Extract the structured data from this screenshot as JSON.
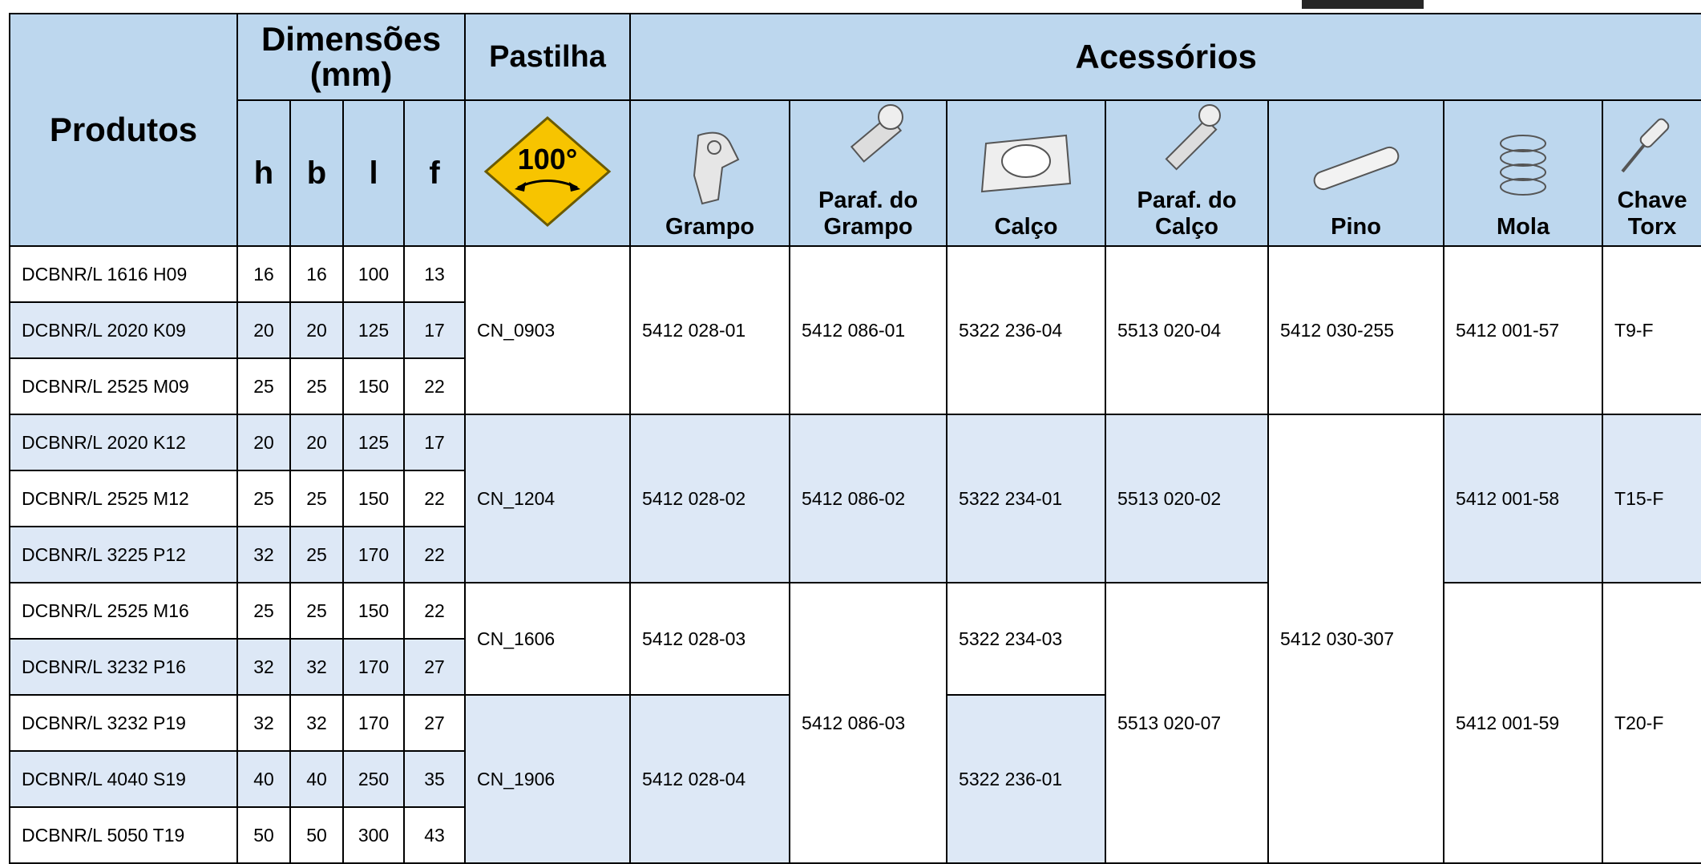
{
  "header": {
    "products": "Produtos",
    "dimensions": "Dimensões (mm)",
    "dimension_columns": [
      "h",
      "b",
      "l",
      "f"
    ],
    "insert": "Pastilha",
    "insert_angle": "100°",
    "accessories": "Acessórios"
  },
  "table": {
    "rows": [
      [
        "DCBNR/L 1616 H09",
        16,
        16,
        100,
        13
      ],
      [
        "DCBNR/L 2020 K09",
        20,
        20,
        125,
        17
      ],
      [
        "DCBNR/L 2525 M09",
        25,
        25,
        150,
        22
      ],
      [
        "DCBNR/L 2020 K12",
        20,
        20,
        125,
        17
      ],
      [
        "DCBNR/L 2525 M12",
        25,
        25,
        150,
        22
      ],
      [
        "DCBNR/L 3225 P12",
        32,
        25,
        170,
        22
      ],
      [
        "DCBNR/L 2525 M16",
        25,
        25,
        150,
        22
      ],
      [
        "DCBNR/L 3232 P16",
        32,
        32,
        170,
        27
      ],
      [
        "DCBNR/L 3232 P19",
        32,
        32,
        170,
        27
      ],
      [
        "DCBNR/L 4040 S19",
        40,
        40,
        250,
        35
      ],
      [
        "DCBNR/L 5050 T19",
        50,
        50,
        300,
        43
      ]
    ],
    "inserts": [
      "CN_0903",
      "CN_1204",
      "CN_1606",
      "CN_1906"
    ],
    "accessories": [
      {
        "header": "Grampo",
        "codes": [
          "5412 028-01",
          "5412 028-02",
          "5412 028-03",
          "5412 028-04"
        ]
      },
      {
        "header": "Paraf. do Grampo",
        "codes": [
          "5412 086-01",
          "5412 086-02",
          "5412 086-03"
        ]
      },
      {
        "header": "Calço",
        "codes": [
          "5322 236-04",
          "5322 234-01",
          "5322 234-03",
          "5322 236-01"
        ]
      },
      {
        "header": "Paraf. do Calço",
        "codes": [
          "5513 020-04",
          "5513 020-02",
          "5513 020-07"
        ]
      },
      {
        "header": "Pino",
        "codes": [
          "5412 030-255",
          "5412 030-307"
        ]
      },
      {
        "header": "Mola",
        "codes": [
          "5412 001-57",
          "5412 001-58",
          "5412 001-59"
        ]
      },
      {
        "header": "Chave Torx",
        "codes": [
          "T9-F",
          "T15-F",
          "T20-F"
        ]
      }
    ]
  }
}
